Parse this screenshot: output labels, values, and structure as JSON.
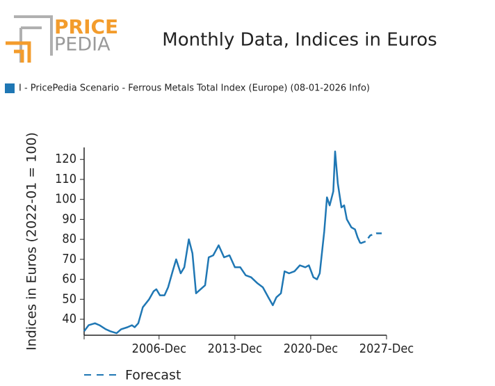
{
  "chart_data": {
    "type": "line",
    "logo": [
      "PRICE",
      "PEDIA"
    ],
    "title": "Monthly Data, Indices in Euros",
    "y_label": "Indices in Euros (2022-01 = 100)",
    "x": [
      "2000-01",
      "2000-06",
      "2001-01",
      "2001-06",
      "2002-01",
      "2002-06",
      "2003-01",
      "2003-06",
      "2004-01",
      "2004-06",
      "2004-09",
      "2005-01",
      "2005-06",
      "2006-01",
      "2006-06",
      "2006-09",
      "2007-01",
      "2007-06",
      "2007-10",
      "2008-03",
      "2008-07",
      "2008-12",
      "2009-04",
      "2009-09",
      "2010-01",
      "2010-05",
      "2010-10",
      "2011-03",
      "2011-07",
      "2011-12",
      "2012-06",
      "2012-12",
      "2013-06",
      "2013-12",
      "2014-06",
      "2014-12",
      "2015-06",
      "2016-01",
      "2016-07",
      "2017-01",
      "2017-06",
      "2017-10",
      "2018-03",
      "2018-07",
      "2018-12",
      "2019-06",
      "2019-12",
      "2020-06",
      "2020-10",
      "2021-03",
      "2021-07",
      "2021-10",
      "2022-03",
      "2022-06",
      "2022-09",
      "2023-01",
      "2023-03",
      "2023-06",
      "2023-10",
      "2024-01",
      "2024-04",
      "2024-09",
      "2025-01",
      "2025-04",
      "2025-07",
      "2026-01",
      "2026-06",
      "2027-01",
      "2027-09"
    ],
    "series": [
      {
        "name": "I - PricePedia Scenario - Ferrous Metals Total Index (Europe) (08-01-2026 Info)",
        "color": "#1f77b4",
        "dash": false,
        "values": [
          34,
          37,
          38,
          37,
          35,
          34,
          33,
          35,
          36,
          37,
          36,
          38,
          46,
          50,
          54,
          55,
          52,
          52,
          56,
          64,
          70,
          63,
          66,
          80,
          73,
          53,
          55,
          57,
          71,
          72,
          77,
          71,
          72,
          66,
          66,
          62,
          61,
          58,
          56,
          51,
          47,
          51,
          53,
          64,
          63,
          64,
          67,
          66,
          67,
          61,
          60,
          63,
          84,
          101,
          97,
          104,
          124,
          108,
          96,
          97,
          90,
          86,
          85,
          81,
          78,
          null,
          null,
          null,
          null
        ]
      },
      {
        "name": "Forecast",
        "color": "#1f77b4",
        "dash": true,
        "values": [
          null,
          null,
          null,
          null,
          null,
          null,
          null,
          null,
          null,
          null,
          null,
          null,
          null,
          null,
          null,
          null,
          null,
          null,
          null,
          null,
          null,
          null,
          null,
          null,
          null,
          null,
          null,
          null,
          null,
          null,
          null,
          null,
          null,
          null,
          null,
          null,
          null,
          null,
          null,
          null,
          null,
          null,
          null,
          null,
          null,
          null,
          null,
          null,
          null,
          null,
          null,
          null,
          null,
          null,
          null,
          null,
          null,
          null,
          null,
          null,
          null,
          null,
          null,
          null,
          78,
          79,
          82,
          83,
          83
        ]
      }
    ],
    "xlim": [
      "2000-01",
      "2027-12"
    ],
    "xticks": [
      {
        "value": "2006-12",
        "label": "2006-Dec"
      },
      {
        "value": "2013-12",
        "label": "2013-Dec"
      },
      {
        "value": "2020-12",
        "label": "2020-Dec"
      },
      {
        "value": "2027-12",
        "label": "2027-Dec"
      }
    ],
    "ylim": [
      32,
      126
    ],
    "yticks": [
      40,
      50,
      60,
      70,
      80,
      90,
      100,
      110,
      120
    ],
    "grid": false
  }
}
